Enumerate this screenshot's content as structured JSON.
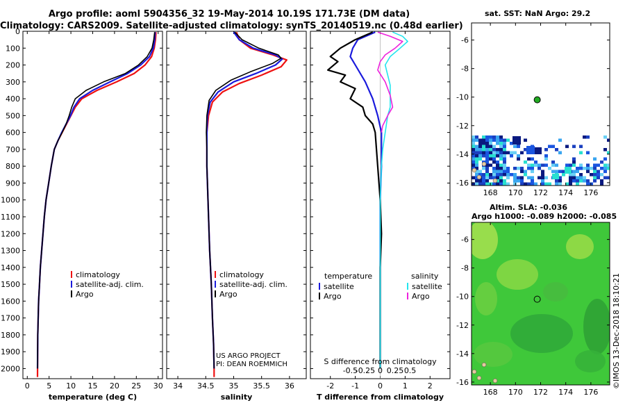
{
  "header": {
    "title_line1": "Argo profile: aoml 5904356_32 19-May-2014 10.19S 171.73E (DM data)",
    "title_line2": "Climatology: CARS2009. Satellite-adjusted climatology: synTS_20140519.nc (0.48d earlier)"
  },
  "right": {
    "sst_title": "sat. SST: NaN Argo: 29.2",
    "sla_title_1": "Altim. SLA: -0.036",
    "sla_title_2": "Argo h1000: -0.089 h2000: -0.085"
  },
  "stamp": "©IMOS 13-Dec-2018 18:10:21",
  "colors": {
    "climatology": "#ee1111",
    "satellite": "#1a1adc",
    "argo": "#000000",
    "sat_salinity": "#22e5ee",
    "argo_salinity": "#ee22dd",
    "location_marker": "#22aa22"
  },
  "chart_data": [
    {
      "id": "temperature",
      "type": "line",
      "xlabel": "temperature (deg C)",
      "xlim": [
        -1,
        31
      ],
      "xticks": [
        0,
        5,
        10,
        15,
        20,
        25,
        30
      ],
      "xtick_labels": [
        "0",
        "5",
        "10",
        "15",
        "20",
        "25",
        "30"
      ],
      "ylim": [
        2060,
        0
      ],
      "yticks": [
        0,
        100,
        200,
        300,
        400,
        500,
        600,
        700,
        800,
        900,
        1000,
        1100,
        1200,
        1300,
        1400,
        1500,
        1600,
        1700,
        1800,
        1900,
        2000
      ],
      "ytick_labels": [
        "0",
        "100",
        "200",
        "300",
        "400",
        "500",
        "600",
        "700",
        "800",
        "900",
        "1000",
        "1100",
        "1200",
        "1300",
        "1400",
        "1500",
        "1600",
        "1700",
        "1800",
        "1900",
        "2000"
      ],
      "legend": [
        "climatology",
        "satellite-adj. clim.",
        "Argo"
      ],
      "series": [
        {
          "name": "climatology",
          "color": "#ee1111",
          "x": [
            29.5,
            29.4,
            29.1,
            28.5,
            27.0,
            24.5,
            20.5,
            16.0,
            12.5,
            11.0,
            10.0,
            9.0,
            8.0,
            7.0,
            6.2,
            5.5,
            4.9,
            4.3,
            3.9,
            3.6,
            3.3,
            3.0,
            2.8,
            2.6,
            2.5,
            2.4,
            2.35
          ],
          "y": [
            5,
            50,
            100,
            150,
            200,
            250,
            300,
            350,
            400,
            450,
            500,
            550,
            600,
            650,
            700,
            800,
            900,
            1000,
            1100,
            1200,
            1300,
            1400,
            1500,
            1600,
            1700,
            1800,
            2050
          ]
        },
        {
          "name": "satellite-adj. clim.",
          "color": "#1a1adc",
          "x": [
            29.3,
            29.2,
            28.9,
            28.0,
            26.0,
            23.0,
            19.0,
            15.0,
            12.0,
            10.7,
            9.9,
            8.9,
            7.9,
            7.0,
            6.2,
            5.5,
            4.9,
            4.3,
            3.9,
            3.6,
            3.3,
            3.0,
            2.8,
            2.6,
            2.5,
            2.4,
            2.35
          ],
          "y": [
            5,
            50,
            100,
            150,
            200,
            250,
            300,
            350,
            400,
            450,
            500,
            550,
            600,
            650,
            700,
            800,
            900,
            1000,
            1100,
            1200,
            1300,
            1400,
            1500,
            1600,
            1700,
            1800,
            2000
          ]
        },
        {
          "name": "Argo",
          "color": "#000000",
          "x": [
            29.2,
            29.0,
            28.6,
            27.5,
            25.5,
            22.5,
            17.5,
            13.5,
            11.0,
            10.2,
            9.6,
            8.9,
            8.0,
            7.0,
            6.2,
            5.5,
            4.9,
            4.3,
            3.9,
            3.6,
            3.3,
            3.0,
            2.8,
            2.6,
            2.5,
            2.4,
            2.35
          ],
          "y": [
            5,
            50,
            100,
            150,
            200,
            250,
            300,
            350,
            400,
            450,
            500,
            550,
            600,
            650,
            700,
            800,
            900,
            1000,
            1100,
            1200,
            1300,
            1400,
            1500,
            1600,
            1700,
            1800,
            2000
          ]
        }
      ]
    },
    {
      "id": "salinity",
      "type": "line",
      "xlabel": "salinity",
      "xlim": [
        33.8,
        36.3
      ],
      "xticks": [
        34,
        34.5,
        35,
        35.5,
        36
      ],
      "xtick_labels": [
        "34",
        "34.5",
        "35",
        "35.5",
        "36"
      ],
      "ylim": [
        2060,
        0
      ],
      "legend": [
        "climatology",
        "satellite-adj. clim.",
        "Argo"
      ],
      "annotations": [
        "US ARGO PROJECT",
        "PI: DEAN ROEMMICH"
      ],
      "series": [
        {
          "name": "climatology",
          "color": "#ee1111",
          "x": [
            35.05,
            35.1,
            35.3,
            35.7,
            35.95,
            35.85,
            35.5,
            35.1,
            34.8,
            34.62,
            34.55,
            34.52,
            34.52,
            34.52,
            34.53,
            34.55,
            34.57,
            34.6,
            34.62,
            34.64,
            34.65,
            34.65
          ],
          "y": [
            5,
            50,
            100,
            140,
            170,
            210,
            260,
            310,
            360,
            420,
            500,
            600,
            700,
            800,
            900,
            1100,
            1300,
            1500,
            1700,
            1850,
            2000,
            2050
          ]
        },
        {
          "name": "satellite-adj. clim.",
          "color": "#1a1adc",
          "x": [
            35.0,
            35.1,
            35.35,
            35.75,
            35.87,
            35.75,
            35.4,
            35.0,
            34.72,
            34.58,
            34.53,
            34.52,
            34.52,
            34.52,
            34.53,
            34.55,
            34.57,
            34.6,
            34.62,
            34.64,
            34.65
          ],
          "y": [
            5,
            50,
            100,
            140,
            165,
            200,
            250,
            300,
            360,
            420,
            500,
            600,
            700,
            800,
            900,
            1100,
            1300,
            1500,
            1700,
            1850,
            2000
          ]
        },
        {
          "name": "Argo",
          "color": "#000000",
          "x": [
            35.02,
            35.15,
            35.45,
            35.8,
            35.85,
            35.7,
            35.3,
            34.95,
            34.68,
            34.56,
            34.52,
            34.51,
            34.52,
            34.52,
            34.53,
            34.55,
            34.57,
            34.6,
            34.62,
            34.64,
            34.65
          ],
          "y": [
            5,
            50,
            100,
            140,
            160,
            190,
            240,
            290,
            350,
            410,
            500,
            600,
            700,
            800,
            900,
            1100,
            1300,
            1500,
            1700,
            1850,
            2000
          ]
        }
      ]
    },
    {
      "id": "difference",
      "type": "line",
      "xlabel": "T difference from climatology",
      "xlim": [
        -2.8,
        2.8
      ],
      "xticks": [
        -2,
        -1,
        0,
        1,
        2
      ],
      "xtick_labels": [
        "-2",
        "-1",
        "0",
        "1",
        "2"
      ],
      "top_axis_label": "S difference from climatology",
      "top_ticks": [
        -0.5,
        -0.25,
        0,
        0.25,
        0.5
      ],
      "top_tick_labels": [
        "-0.5",
        "-0.25",
        "0",
        "0.25",
        "0.5"
      ],
      "ylim": [
        2060,
        0
      ],
      "legend_left": {
        "heading": "temperature",
        "items": [
          "satellite",
          "Argo"
        ]
      },
      "legend_right": {
        "heading": "salinity",
        "items": [
          "satellite",
          "Argo"
        ]
      },
      "series": [
        {
          "name": "temperature satellite",
          "color": "#1a1adc",
          "x": [
            -0.2,
            -0.9,
            -1.1,
            -1.2,
            -1.0,
            -0.6,
            -0.3,
            -0.1,
            0.05,
            0.05,
            0.0,
            0.0,
            0.0,
            0.0
          ],
          "y": [
            5,
            50,
            100,
            150,
            200,
            300,
            400,
            500,
            600,
            800,
            1000,
            1400,
            1800,
            2000
          ]
        },
        {
          "name": "temperature Argo",
          "color": "#000000",
          "x": [
            -0.3,
            -1.0,
            -1.6,
            -2.0,
            -1.7,
            -2.1,
            -1.4,
            -1.6,
            -1.0,
            -1.2,
            -0.7,
            -0.6,
            -0.3,
            -0.2,
            -0.15,
            -0.1,
            -0.05,
            0.0,
            0.05,
            0.0,
            0.0,
            0.0
          ],
          "y": [
            5,
            50,
            100,
            150,
            180,
            230,
            260,
            300,
            340,
            400,
            450,
            500,
            550,
            600,
            700,
            800,
            900,
            1000,
            1200,
            1400,
            1800,
            2000
          ]
        },
        {
          "name": "salinity satellite",
          "color": "#22e5ee",
          "x": [
            0.5,
            0.9,
            1.1,
            0.8,
            0.4,
            0.2,
            0.3,
            0.4,
            0.4,
            0.4,
            0.3,
            0.2,
            0.1,
            0.05,
            0.0,
            0.0,
            0.0
          ],
          "y": [
            5,
            30,
            60,
            100,
            150,
            200,
            260,
            320,
            400,
            450,
            500,
            600,
            700,
            800,
            1000,
            1400,
            2000
          ]
        },
        {
          "name": "salinity Argo",
          "color": "#ee22dd",
          "x": [
            -0.1,
            0.4,
            0.9,
            0.6,
            0.2,
            0.0,
            -0.1,
            0.2,
            0.4,
            0.5,
            0.3,
            0.1,
            0.05
          ],
          "y": [
            5,
            30,
            60,
            100,
            140,
            180,
            230,
            300,
            380,
            450,
            500,
            560,
            600
          ]
        }
      ]
    },
    {
      "id": "sst-map",
      "type": "heatmap",
      "xticks": [
        168,
        170,
        172,
        174,
        176
      ],
      "xtick_labels": [
        "168",
        "170",
        "172",
        "174",
        "176"
      ],
      "xlim": [
        166.5,
        177.5
      ],
      "ylim": [
        -16.2,
        -4.8
      ],
      "yticks": [
        -6,
        -8,
        -10,
        -12,
        -14,
        -16
      ],
      "ytick_labels": [
        "-6",
        "-8",
        "-10",
        "-12",
        "-14",
        "-16"
      ],
      "marker": {
        "lon": 171.73,
        "lat": -10.19
      }
    },
    {
      "id": "sla-map",
      "type": "heatmap",
      "xticks": [
        168,
        170,
        172,
        174,
        176
      ],
      "xtick_labels": [
        "168",
        "170",
        "172",
        "174",
        "176"
      ],
      "xlim": [
        166.5,
        177.5
      ],
      "ylim": [
        -16.2,
        -4.8
      ],
      "yticks": [
        -6,
        -8,
        -10,
        -12,
        -14,
        -16
      ],
      "ytick_labels": [
        "-6",
        "-8",
        "-10",
        "-12",
        "-14",
        "-16"
      ],
      "marker": {
        "lon": 171.73,
        "lat": -10.19
      }
    }
  ]
}
